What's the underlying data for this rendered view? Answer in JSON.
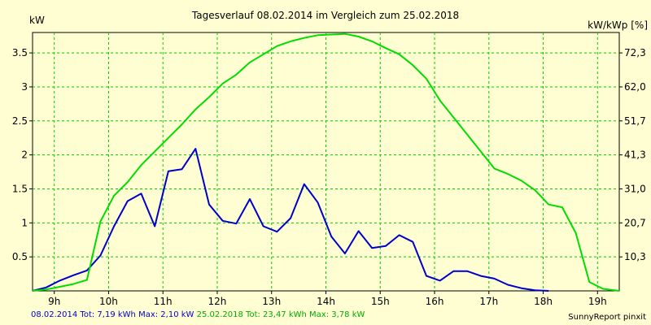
{
  "chart_data": {
    "type": "line",
    "title": "Tagesverlauf 08.02.2014 im Vergleich zum 25.02.2018",
    "ylabel_left": "kW",
    "ylabel_right": "kW/kWp [%]",
    "x_ticks": [
      "9h",
      "10h",
      "11h",
      "12h",
      "13h",
      "14h",
      "15h",
      "16h",
      "17h",
      "18h",
      "19h"
    ],
    "x_tick_values": [
      9,
      10,
      11,
      12,
      13,
      14,
      15,
      16,
      17,
      18,
      19
    ],
    "xlim": [
      8.6,
      19.4
    ],
    "ylim": [
      0,
      3.8
    ],
    "y_ticks_left": [
      "0.5",
      "1",
      "1.5",
      "2",
      "2.5",
      "3",
      "3.5"
    ],
    "y_tick_values_left": [
      0.5,
      1,
      1.5,
      2,
      2.5,
      3,
      3.5
    ],
    "y_ticks_right": [
      "10,3",
      "20,7",
      "31,0",
      "41,3",
      "51,7",
      "62,0",
      "72,3"
    ],
    "y_tick_values_right": [
      0.5,
      1,
      1.5,
      2,
      2.5,
      3,
      3.5
    ],
    "grid": true,
    "series": [
      {
        "name": "08.02.2014",
        "color": "#0000cc",
        "x": [
          8.6,
          8.85,
          9.1,
          9.35,
          9.6,
          9.85,
          10.1,
          10.35,
          10.6,
          10.85,
          11.1,
          11.35,
          11.6,
          11.85,
          12.1,
          12.35,
          12.6,
          12.85,
          13.1,
          13.35,
          13.6,
          13.85,
          14.1,
          14.35,
          14.6,
          14.85,
          15.1,
          15.35,
          15.6,
          15.85,
          16.1,
          16.35,
          16.6,
          16.85,
          17.1,
          17.35,
          17.6,
          17.85,
          18.1
        ],
        "y": [
          0,
          0.05,
          0.15,
          0.23,
          0.3,
          0.52,
          0.95,
          1.32,
          1.43,
          0.95,
          1.76,
          1.79,
          2.09,
          1.27,
          1.03,
          0.99,
          1.35,
          0.95,
          0.87,
          1.07,
          1.57,
          1.3,
          0.8,
          0.55,
          0.88,
          0.63,
          0.66,
          0.82,
          0.72,
          0.22,
          0.15,
          0.29,
          0.29,
          0.22,
          0.18,
          0.09,
          0.04,
          0.01,
          0
        ]
      },
      {
        "name": "25.02.2018",
        "color": "#00dd00",
        "x": [
          8.6,
          8.85,
          9.1,
          9.35,
          9.6,
          9.85,
          10.1,
          10.35,
          10.6,
          10.85,
          11.1,
          11.35,
          11.6,
          11.85,
          12.1,
          12.35,
          12.6,
          12.85,
          13.1,
          13.35,
          13.6,
          13.85,
          14.1,
          14.35,
          14.6,
          14.85,
          15.1,
          15.35,
          15.6,
          15.85,
          16.1,
          16.35,
          16.6,
          16.85,
          17.1,
          17.35,
          17.6,
          17.85,
          18.1,
          18.35,
          18.6,
          18.85,
          19.1,
          19.4
        ],
        "y": [
          0,
          0.02,
          0.06,
          0.1,
          0.16,
          1.02,
          1.4,
          1.6,
          1.85,
          2.05,
          2.25,
          2.45,
          2.67,
          2.85,
          3.05,
          3.18,
          3.36,
          3.48,
          3.6,
          3.67,
          3.72,
          3.76,
          3.77,
          3.78,
          3.74,
          3.67,
          3.57,
          3.48,
          3.32,
          3.12,
          2.8,
          2.55,
          2.3,
          2.05,
          1.8,
          1.72,
          1.62,
          1.48,
          1.27,
          1.23,
          0.85,
          0.13,
          0.03,
          0
        ]
      }
    ]
  },
  "footer": {
    "s1_text": "08.02.2014 Tot: 7,19 kWh Max: 2,10 kW",
    "s2_text": "25.02.2018 Tot: 23,47 kWh Max: 3,78 kW",
    "credit": "SunnyReport pinxit"
  }
}
